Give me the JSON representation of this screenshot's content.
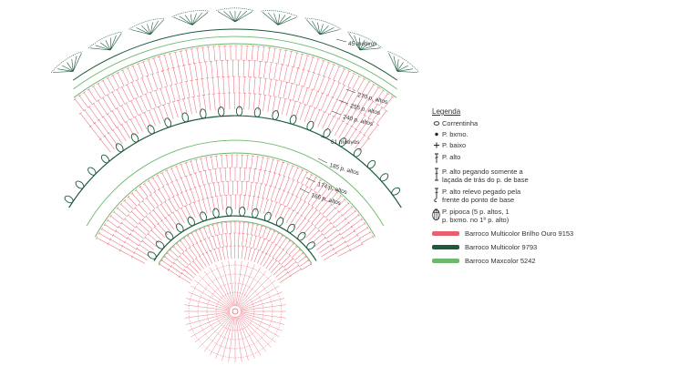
{
  "annotations": {
    "motivos_45": "45 motivos",
    "altos_270": "270 p. altos",
    "altos_255": "255 p. altos",
    "altos_240": "240 p. altos",
    "motivos_61": "61 motivos",
    "altos_185": "185 p. altos",
    "altos_174": "174 p. altos",
    "altos_166": "166 p. altos"
  },
  "legend": {
    "title": "Legenda",
    "items": [
      {
        "icon": "chain-stitch-icon",
        "label": "Correntinha"
      },
      {
        "icon": "slip-stitch-icon",
        "label": "P. bxmo."
      },
      {
        "icon": "single-crochet-icon",
        "label": "P. baixo"
      },
      {
        "icon": "double-crochet-icon",
        "label": "P. alto"
      },
      {
        "icon": "back-loop-dc-icon",
        "label": "P. alto pegando somente a\nlaçada de trás do p. de base"
      },
      {
        "icon": "front-post-dc-icon",
        "label": "P. alto relevo pegado pela\nfrente do ponto de base"
      },
      {
        "icon": "popcorn-stitch-icon",
        "label": "P. pipoca (5 p. altos, 1\np. bxmo. no 1º p. alto)"
      }
    ],
    "colors": [
      {
        "label": "Barroco Multicolor Brilho Ouro 9153",
        "color": "#e8606f"
      },
      {
        "label": "Barroco Multicolor 9793",
        "color": "#1d5a3c"
      },
      {
        "label": "Barroco Maxcolor 5242",
        "color": "#6db86d"
      }
    ]
  }
}
